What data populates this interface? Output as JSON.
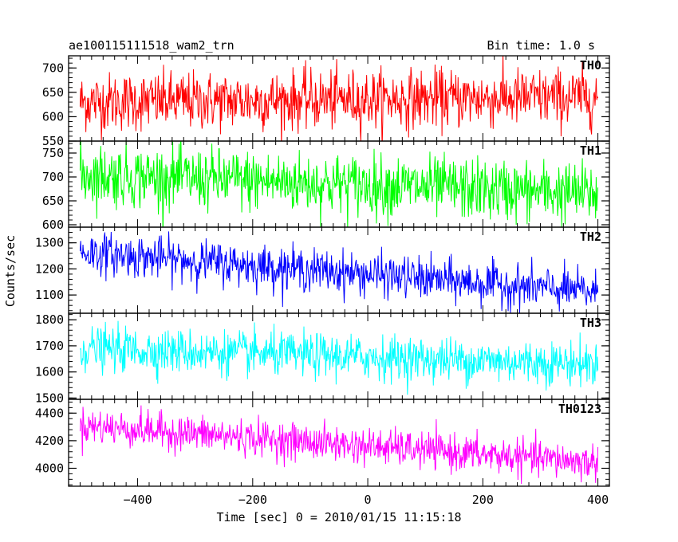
{
  "chart_data": {
    "type": "line",
    "title_left": "ae100115111518_wam2_trn",
    "title_right": "Bin time: 1.0 s",
    "xlabel": "Time [sec] 0 = 2010/01/15 11:15:18",
    "ylabel": "Counts/sec",
    "xlim": [
      -520,
      420
    ],
    "x_ticks": [
      -400,
      -200,
      0,
      200,
      400
    ],
    "x_tick_labels": [
      "−400",
      "−200",
      "0",
      "200",
      "400"
    ],
    "x_range_data": [
      -500,
      400
    ],
    "bin_time_s": 1.0,
    "grid": false,
    "panels": [
      {
        "name": "TH0",
        "color": "#ff0000",
        "ylim": [
          550,
          725
        ],
        "y_ticks": [
          550,
          600,
          650,
          700
        ],
        "y_tick_labels": [
          "550",
          "600",
          "650",
          "700"
        ],
        "mean_start": 630,
        "mean_end": 640,
        "noise": 30
      },
      {
        "name": "TH1",
        "color": "#00ff00",
        "ylim": [
          595,
          775
        ],
        "y_ticks": [
          600,
          650,
          700,
          750
        ],
        "y_tick_labels": [
          "600",
          "650",
          "700",
          "750"
        ],
        "mean_start": 705,
        "mean_end": 665,
        "noise": 32
      },
      {
        "name": "TH2",
        "color": "#0000ff",
        "ylim": [
          1030,
          1360
        ],
        "y_ticks": [
          1100,
          1200,
          1300
        ],
        "y_tick_labels": [
          "1100",
          "1200",
          "1300"
        ],
        "mean_start": 1265,
        "mean_end": 1110,
        "noise": 40
      },
      {
        "name": "TH3",
        "color": "#00ffff",
        "ylim": [
          1495,
          1825
        ],
        "y_ticks": [
          1500,
          1600,
          1700,
          1800
        ],
        "y_tick_labels": [
          "1500",
          "1600",
          "1700",
          "1800"
        ],
        "mean_start": 1690,
        "mean_end": 1630,
        "noise": 42
      },
      {
        "name": "TH0123",
        "color": "#ff00ff",
        "ylim": [
          3870,
          4500
        ],
        "y_ticks": [
          4000,
          4200,
          4400
        ],
        "y_tick_labels": [
          "4000",
          "4200",
          "4400"
        ],
        "mean_start": 4310,
        "mean_end": 4040,
        "noise": 65
      }
    ]
  }
}
